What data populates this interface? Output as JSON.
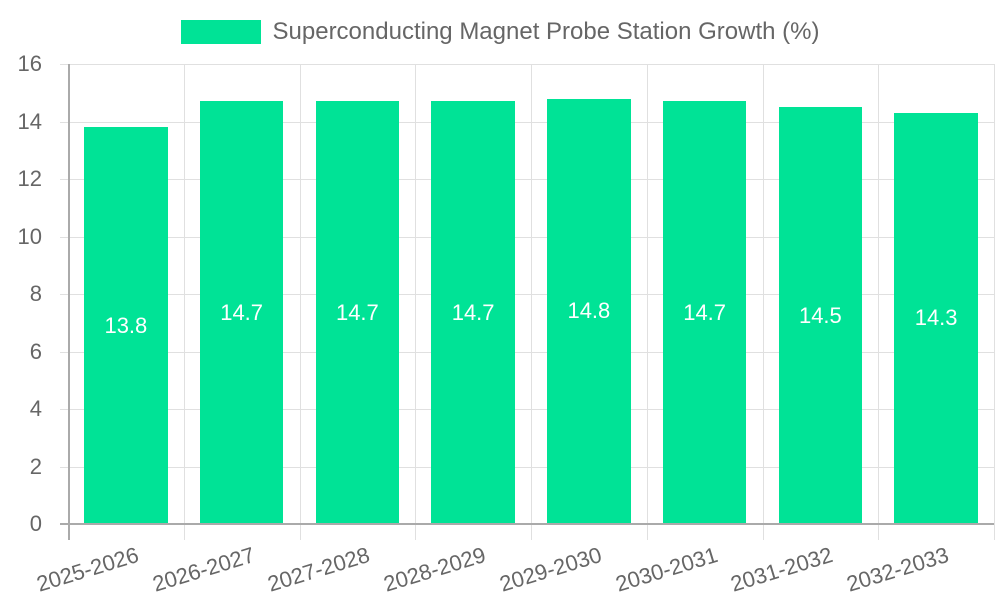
{
  "chart_data": {
    "type": "bar",
    "title": "",
    "legend": [
      {
        "label": "Superconducting Magnet Probe Station Growth (%)",
        "color": "#00e396"
      }
    ],
    "legend_position": "top",
    "categories": [
      "2025-2026",
      "2026-2027",
      "2027-2028",
      "2028-2029",
      "2029-2030",
      "2030-2031",
      "2031-2032",
      "2032-2033"
    ],
    "series": [
      {
        "name": "Superconducting Magnet Probe Station Growth (%)",
        "values": [
          13.8,
          14.7,
          14.7,
          14.7,
          14.8,
          14.7,
          14.5,
          14.3
        ],
        "color": "#00e396"
      }
    ],
    "data_labels": [
      "13.8",
      "14.7",
      "14.7",
      "14.7",
      "14.8",
      "14.7",
      "14.5",
      "14.3"
    ],
    "xlabel": "",
    "ylabel": "",
    "ylim": [
      0,
      16
    ],
    "yticks": [
      "0",
      "2",
      "4",
      "6",
      "8",
      "10",
      "12",
      "14",
      "16"
    ],
    "grid": true,
    "x_tick_rotation": -17
  }
}
